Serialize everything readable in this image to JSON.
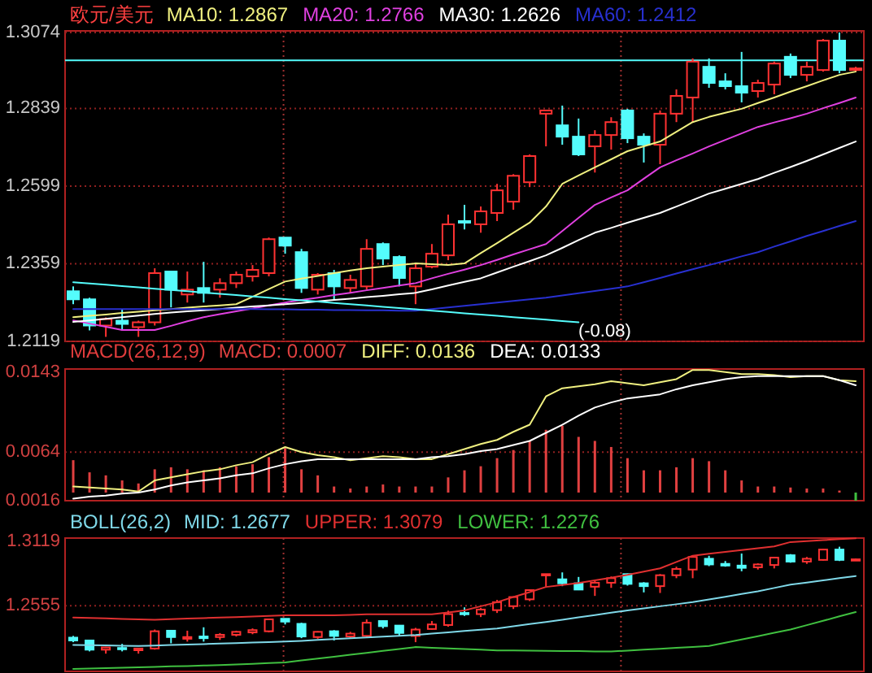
{
  "chart_data": [
    {
      "type": "candlestick",
      "title": "欧元/美元",
      "categories": [
        null,
        null,
        null,
        null,
        null,
        null,
        null,
        null,
        null,
        null,
        null,
        null,
        null,
        null,
        null,
        null,
        null,
        null,
        null,
        null,
        null,
        null,
        null,
        null,
        null,
        null,
        null,
        null,
        null,
        null,
        null,
        null,
        null,
        null,
        null,
        null,
        null,
        null,
        null,
        null,
        null,
        null,
        null,
        null,
        null,
        null,
        null,
        null,
        null
      ],
      "ohlc": [
        [
          1.2274,
          1.2289,
          1.2234,
          1.2249
        ],
        [
          1.2249,
          1.2254,
          1.2153,
          1.2168
        ],
        [
          1.2168,
          1.2193,
          1.2133,
          1.2188
        ],
        [
          1.2183,
          1.2219,
          1.2153,
          1.2173
        ],
        [
          1.2163,
          1.2183,
          1.2133,
          1.2178
        ],
        [
          1.2178,
          1.2345,
          1.2168,
          1.233
        ],
        [
          1.2335,
          1.2335,
          1.2224,
          1.2279
        ],
        [
          1.2264,
          1.2335,
          1.2239,
          1.2279
        ],
        [
          1.2284,
          1.2365,
          1.2239,
          1.2269
        ],
        [
          1.2279,
          1.2314,
          1.2254,
          1.2299
        ],
        [
          1.2299,
          1.2335,
          1.2284,
          1.2325
        ],
        [
          1.232,
          1.2355,
          1.2304,
          1.234
        ],
        [
          1.233,
          1.244,
          1.232,
          1.2435
        ],
        [
          1.244,
          1.244,
          1.239,
          1.2415
        ],
        [
          1.2395,
          1.2405,
          1.2269,
          1.2284
        ],
        [
          1.2279,
          1.233,
          1.2264,
          1.2325
        ],
        [
          1.233,
          1.234,
          1.2249,
          1.2289
        ],
        [
          1.2284,
          1.2325,
          1.2269,
          1.2309
        ],
        [
          1.2289,
          1.2435,
          1.2279,
          1.2405
        ],
        [
          1.242,
          1.2425,
          1.2355,
          1.2375
        ],
        [
          1.238,
          1.2385,
          1.2289,
          1.2315
        ],
        [
          1.2289,
          1.236,
          1.2234,
          1.2345
        ],
        [
          1.235,
          1.242,
          1.2345,
          1.239
        ],
        [
          1.2385,
          1.2511,
          1.237,
          1.2481
        ],
        [
          1.2491,
          1.2541,
          1.2465,
          1.2486
        ],
        [
          1.2481,
          1.2536,
          1.2455,
          1.2521
        ],
        [
          1.2516,
          1.2606,
          1.2491,
          1.2586
        ],
        [
          1.2551,
          1.2636,
          1.2526,
          1.2631
        ],
        [
          1.2611,
          1.2697,
          1.2596,
          1.2692
        ],
        [
          1.2823,
          1.2833,
          1.2722,
          1.2833
        ],
        [
          1.2787,
          1.2848,
          1.2727,
          1.2752
        ],
        [
          1.2752,
          1.2808,
          1.2692,
          1.2697
        ],
        [
          1.2722,
          1.2772,
          1.2641,
          1.2757
        ],
        [
          1.2757,
          1.2812,
          1.2712,
          1.2797
        ],
        [
          1.2833,
          1.2838,
          1.2732,
          1.2747
        ],
        [
          1.2752,
          1.2762,
          1.2672,
          1.2727
        ],
        [
          1.2727,
          1.2833,
          1.2667,
          1.2823
        ],
        [
          1.2823,
          1.2898,
          1.2797,
          1.2878
        ],
        [
          1.2873,
          1.2994,
          1.2797,
          1.2984
        ],
        [
          1.2968,
          1.2994,
          1.2903,
          1.2918
        ],
        [
          1.2923,
          1.2948,
          1.2898,
          1.2908
        ],
        [
          1.2908,
          1.3014,
          1.2858,
          1.2888
        ],
        [
          1.2893,
          1.2928,
          1.2873,
          1.2918
        ],
        [
          1.2913,
          1.2984,
          1.2883,
          1.2978
        ],
        [
          1.2999,
          1.3009,
          1.2933,
          1.2943
        ],
        [
          1.2943,
          1.2984,
          1.2923,
          1.2968
        ],
        [
          1.2958,
          1.3054,
          1.2953,
          1.3049
        ],
        [
          1.3049,
          1.3074,
          1.2948,
          1.2958
        ],
        [
          1.2958,
          1.2968,
          1.2953,
          1.2963
        ]
      ],
      "colors": [
        "#54fcfc",
        "#54fcfc",
        "#ff3232",
        "#54fcfc",
        "#ff3232",
        "#ff3232",
        "#54fcfc",
        "#ff3232",
        "#54fcfc",
        "#ff3232",
        "#ff3232",
        "#ff3232",
        "#ff3232",
        "#54fcfc",
        "#54fcfc",
        "#ff3232",
        "#54fcfc",
        "#ff3232",
        "#ff3232",
        "#54fcfc",
        "#54fcfc",
        "#ff3232",
        "#ff3232",
        "#ff3232",
        "#54fcfc",
        "#ff3232",
        "#ff3232",
        "#ff3232",
        "#ff3232",
        "#ff3232",
        "#54fcfc",
        "#54fcfc",
        "#ff3232",
        "#ff3232",
        "#54fcfc",
        "#54fcfc",
        "#ff3232",
        "#ff3232",
        "#ff3232",
        "#54fcfc",
        "#54fcfc",
        "#54fcfc",
        "#ff3232",
        "#ff3232",
        "#54fcfc",
        "#ff3232",
        "#ff3232",
        "#54fcfc",
        "#ff3232"
      ],
      "series": [
        {
          "name": "MA10: 1.2867",
          "type": "line",
          "color": "#f0f080",
          "values": [
            1.2194,
            1.2198,
            1.2202,
            1.2207,
            1.2211,
            1.2215,
            1.2219,
            1.2223,
            1.2227,
            1.223,
            1.2234,
            1.2257,
            1.2281,
            1.2304,
            1.2313,
            1.2321,
            1.233,
            1.2338,
            1.2345,
            1.235,
            1.2355,
            1.236,
            1.2358,
            1.2355,
            1.236,
            1.2392,
            1.2423,
            1.2455,
            1.2486,
            1.2536,
            1.2606,
            1.2632,
            1.2657,
            1.2682,
            1.2707,
            1.2722,
            1.2737,
            1.2767,
            1.2797,
            1.2813,
            1.2826,
            1.2838,
            1.2856,
            1.2873,
            1.2891,
            1.2908,
            1.2926,
            1.2943,
            1.2953
          ]
        },
        {
          "name": "MA20: 1.2766",
          "type": "line",
          "color": "#e040e0",
          "values": [
            1.2184,
            1.2174,
            1.2164,
            1.2154,
            1.2154,
            1.2154,
            1.2167,
            1.2181,
            1.2194,
            1.2203,
            1.2212,
            1.2221,
            1.223,
            1.2239,
            1.2247,
            1.2254,
            1.2262,
            1.2269,
            1.2277,
            1.2284,
            1.2292,
            1.2299,
            1.2314,
            1.2328,
            1.2341,
            1.2355,
            1.2371,
            1.2388,
            1.2404,
            1.242,
            1.246,
            1.2501,
            1.2541,
            1.2564,
            1.2586,
            1.2622,
            1.2657,
            1.2679,
            1.27,
            1.2722,
            1.2742,
            1.2762,
            1.2782,
            1.2796,
            1.2809,
            1.2823,
            1.284,
            1.2856,
            1.2873
          ]
        },
        {
          "name": "MA30: 1.2626",
          "type": "line",
          "color": "#ffffff",
          "values": [
            1.2179,
            1.2184,
            1.2189,
            1.2194,
            1.2199,
            1.2204,
            1.2208,
            1.2212,
            1.2215,
            1.2219,
            1.2223,
            1.2227,
            1.223,
            1.2234,
            1.2238,
            1.2243,
            1.2247,
            1.2251,
            1.2256,
            1.226,
            1.2265,
            1.2269,
            1.228,
            1.2292,
            1.2303,
            1.2314,
            1.2332,
            1.235,
            1.2367,
            1.2385,
            1.2408,
            1.2432,
            1.2455,
            1.247,
            1.2486,
            1.2501,
            1.2516,
            1.2536,
            1.2556,
            1.2576,
            1.2591,
            1.2606,
            1.2621,
            1.264,
            1.2658,
            1.2677,
            1.2697,
            1.2717,
            1.2737
          ]
        },
        {
          "name": "MA60: 1.2412",
          "type": "line",
          "color": "#2830d0",
          "values": [
            1.2219,
            1.2219,
            1.2219,
            1.2219,
            1.2219,
            1.2219,
            1.2219,
            1.2219,
            1.2219,
            1.2219,
            1.2219,
            1.2219,
            1.2218,
            1.2218,
            1.2217,
            1.2217,
            1.2216,
            1.2216,
            1.2215,
            1.2215,
            1.2214,
            1.2214,
            1.2219,
            1.2224,
            1.2229,
            1.2234,
            1.2239,
            1.2244,
            1.2249,
            1.2254,
            1.2261,
            1.2268,
            1.2275,
            1.2282,
            1.2289,
            1.2302,
            1.2315,
            1.2329,
            1.2342,
            1.2355,
            1.2368,
            1.2382,
            1.2395,
            1.2412,
            1.2428,
            1.2445,
            1.246,
            1.2476,
            1.2491
          ]
        },
        {
          "type": "line",
          "color": "#54fcfc",
          "values": [
            1.2302,
            1.2298,
            1.2294,
            1.229,
            1.2286,
            1.2282,
            1.2278,
            1.2274,
            1.227,
            1.2266,
            1.2262,
            1.2258,
            1.2254,
            1.225,
            1.2246,
            1.2242,
            1.2238,
            1.2234,
            1.223,
            1.2226,
            1.2222,
            1.2218,
            1.2214,
            1.221,
            1.2206,
            1.2202,
            1.2198,
            1.2194,
            1.219,
            1.2186,
            1.2182,
            1.2178,
            null,
            null,
            null,
            null,
            null,
            null,
            null,
            null,
            null,
            null,
            null,
            null,
            null,
            null,
            null,
            null,
            null
          ]
        }
      ],
      "annotations": [
        "(-0.08)"
      ],
      "ylim": [
        1.2119,
        1.3079
      ],
      "yticks": [
        1.2119,
        1.2359,
        1.2599,
        1.2839,
        1.3074
      ],
      "ref_lines": [
        {
          "axis": "y",
          "value": 1.2988,
          "color": "#54fcfc",
          "line_style": "solid"
        }
      ],
      "grid": "y",
      "tick_labels": "y"
    },
    {
      "type": "bar",
      "title": "MACD(26,12,9)",
      "categories": [
        null,
        null,
        null,
        null,
        null,
        null,
        null,
        null,
        null,
        null,
        null,
        null,
        null,
        null,
        null,
        null,
        null,
        null,
        null,
        null,
        null,
        null,
        null,
        null,
        null,
        null,
        null,
        null,
        null,
        null,
        null,
        null,
        null,
        null,
        null,
        null,
        null,
        null,
        null,
        null,
        null,
        null,
        null,
        null,
        null,
        null,
        null,
        null,
        null
      ],
      "series": [
        {
          "name": "MACD: 0.0007",
          "color": "#e04040",
          "base": [
            0.0024,
            0.0024,
            0.0024,
            0.0024,
            0.0024,
            0.0024,
            0.0024,
            0.0024,
            0.0024,
            0.0024,
            0.0024,
            0.0024,
            0.0024,
            0.0024,
            0.0024,
            0.0024,
            0.0024,
            0.0024,
            0.0024,
            0.0024,
            0.0024,
            0.0024,
            0.0024,
            0.0024,
            0.0024,
            0.0024,
            0.0024,
            0.0024,
            0.0024,
            0.0024,
            0.0024,
            0.0024,
            0.0024,
            0.0024,
            0.0024,
            0.0024,
            0.0024,
            0.0024,
            0.0024,
            0.0024,
            0.0024,
            0.0024,
            0.0024,
            0.0024,
            0.0024,
            0.0024,
            0.0024,
            0.0024,
            0.0024
          ],
          "values": [
            0.0032,
            0.002,
            0.0017,
            0.0012,
            0.0009,
            0.0023,
            0.0025,
            0.0023,
            0.0022,
            0.0025,
            0.0026,
            0.0028,
            0.0035,
            0.0044,
            0.0023,
            0.0017,
            0.0006,
            0.0004,
            0.0006,
            0.0008,
            0.0006,
            0.0006,
            0.0006,
            0.0015,
            0.0022,
            0.0026,
            0.0034,
            0.0042,
            0.0051,
            0.0062,
            0.0066,
            0.0055,
            0.0051,
            0.0045,
            0.0034,
            0.0022,
            0.0022,
            0.0025,
            0.0034,
            0.0031,
            0.0022,
            0.0012,
            0.0006,
            0.0006,
            0.0005,
            0.0004,
            0.0004,
            0.0002,
            -0.0008
          ],
          "colors": [
            "#e04040",
            "#e04040",
            "#e04040",
            "#e04040",
            "#e04040",
            "#e04040",
            "#e04040",
            "#e04040",
            "#e04040",
            "#e04040",
            "#e04040",
            "#e04040",
            "#e04040",
            "#e04040",
            "#e04040",
            "#e04040",
            "#e04040",
            "#e04040",
            "#e04040",
            "#e04040",
            "#e04040",
            "#e04040",
            "#e04040",
            "#e04040",
            "#e04040",
            "#e04040",
            "#e04040",
            "#e04040",
            "#e04040",
            "#e04040",
            "#e04040",
            "#e04040",
            "#e04040",
            "#e04040",
            "#e04040",
            "#e04040",
            "#e04040",
            "#e04040",
            "#e04040",
            "#e04040",
            "#e04040",
            "#e04040",
            "#e04040",
            "#e04040",
            "#e04040",
            "#e04040",
            "#e04040",
            "#e04040",
            "#40c040"
          ]
        },
        {
          "name": "DIFF: 0.0136",
          "type": "line",
          "color": "#f0f080",
          "values": [
            0.003,
            0.0029,
            0.0028,
            0.0027,
            0.0025,
            0.0036,
            0.0039,
            0.0042,
            0.0045,
            0.0047,
            0.0051,
            0.0054,
            0.0062,
            0.0069,
            0.0064,
            0.0061,
            0.0059,
            0.0056,
            0.0058,
            0.006,
            0.0059,
            0.0057,
            0.0057,
            0.0062,
            0.0067,
            0.0072,
            0.0076,
            0.0084,
            0.0091,
            0.0119,
            0.0127,
            0.0129,
            0.0131,
            0.0134,
            0.0132,
            0.013,
            0.0133,
            0.0136,
            0.0145,
            0.0145,
            0.0143,
            0.0141,
            0.0141,
            0.014,
            0.0138,
            0.0139,
            0.0139,
            0.0135,
            0.0134
          ]
        },
        {
          "name": "DEA: 0.0133",
          "type": "line",
          "color": "#ffffff",
          "values": [
            0.0018,
            0.002,
            0.0021,
            0.0023,
            0.0024,
            0.0027,
            0.0031,
            0.0034,
            0.0036,
            0.0038,
            0.0041,
            0.0043,
            0.0048,
            0.0052,
            0.0055,
            0.0057,
            0.0057,
            0.0057,
            0.0057,
            0.0057,
            0.0057,
            0.0057,
            0.0059,
            0.006,
            0.0062,
            0.0065,
            0.0067,
            0.0071,
            0.0075,
            0.0083,
            0.0091,
            0.01,
            0.0108,
            0.0113,
            0.0117,
            0.0119,
            0.0121,
            0.0126,
            0.013,
            0.0133,
            0.0136,
            0.0138,
            0.0139,
            0.0139,
            0.0139,
            0.0139,
            0.0139,
            0.0135,
            0.013
          ]
        }
      ],
      "ylim": [
        0.0016,
        0.0146
      ],
      "yticks": [
        0.0016,
        0.0064,
        0.0143
      ],
      "ref_lines": [
        {
          "axis": "y",
          "value": 0.0064,
          "color": "#902020",
          "line_style": "dotted"
        }
      ],
      "tick_labels": "y"
    },
    {
      "type": "line",
      "title": "BOLL(26,2)",
      "categories": [
        null,
        null,
        null,
        null,
        null,
        null,
        null,
        null,
        null,
        null,
        null,
        null,
        null,
        null,
        null,
        null,
        null,
        null,
        null,
        null,
        null,
        null,
        null,
        null,
        null,
        null,
        null,
        null,
        null,
        null,
        null,
        null,
        null,
        null,
        null,
        null,
        null,
        null,
        null,
        null,
        null,
        null,
        null,
        null,
        null,
        null,
        null,
        null,
        null
      ],
      "series": [
        {
          "type": "candlestick",
          "ohlc": [
            [
              1.2274,
              1.2289,
              1.2234,
              1.2249
            ],
            [
              1.2249,
              1.2254,
              1.2153,
              1.2168
            ],
            [
              1.2168,
              1.2193,
              1.2133,
              1.2188
            ],
            [
              1.2183,
              1.2219,
              1.2153,
              1.2173
            ],
            [
              1.2163,
              1.2183,
              1.2133,
              1.2178
            ],
            [
              1.2178,
              1.2345,
              1.2168,
              1.233
            ],
            [
              1.2335,
              1.2335,
              1.2224,
              1.2279
            ],
            [
              1.2264,
              1.2335,
              1.2239,
              1.2279
            ],
            [
              1.2284,
              1.2365,
              1.2239,
              1.2269
            ],
            [
              1.2279,
              1.2314,
              1.2254,
              1.2299
            ],
            [
              1.2299,
              1.2335,
              1.2284,
              1.2325
            ],
            [
              1.232,
              1.2355,
              1.2304,
              1.234
            ],
            [
              1.233,
              1.244,
              1.232,
              1.2435
            ],
            [
              1.244,
              1.244,
              1.239,
              1.2415
            ],
            [
              1.2395,
              1.2405,
              1.2269,
              1.2284
            ],
            [
              1.2279,
              1.233,
              1.2264,
              1.2325
            ],
            [
              1.233,
              1.234,
              1.2249,
              1.2289
            ],
            [
              1.2284,
              1.2325,
              1.2269,
              1.2309
            ],
            [
              1.2289,
              1.2435,
              1.2279,
              1.2405
            ],
            [
              1.242,
              1.2425,
              1.2355,
              1.2375
            ],
            [
              1.238,
              1.2385,
              1.2289,
              1.2315
            ],
            [
              1.2289,
              1.236,
              1.2234,
              1.2345
            ],
            [
              1.235,
              1.242,
              1.2345,
              1.239
            ],
            [
              1.2385,
              1.2511,
              1.237,
              1.2481
            ],
            [
              1.2491,
              1.2541,
              1.2465,
              1.2486
            ],
            [
              1.2481,
              1.2536,
              1.2455,
              1.2521
            ],
            [
              1.2516,
              1.2606,
              1.2491,
              1.2586
            ],
            [
              1.2551,
              1.2636,
              1.2526,
              1.2631
            ],
            [
              1.2611,
              1.2697,
              1.2596,
              1.2692
            ],
            [
              1.2823,
              1.2833,
              1.2722,
              1.2833
            ],
            [
              1.2787,
              1.2848,
              1.2727,
              1.2752
            ],
            [
              1.2752,
              1.2808,
              1.2692,
              1.2697
            ],
            [
              1.2722,
              1.2772,
              1.2641,
              1.2757
            ],
            [
              1.2757,
              1.2812,
              1.2712,
              1.2797
            ],
            [
              1.2833,
              1.2838,
              1.2732,
              1.2747
            ],
            [
              1.2752,
              1.2762,
              1.2672,
              1.2727
            ],
            [
              1.2727,
              1.2833,
              1.2667,
              1.2823
            ],
            [
              1.2823,
              1.2898,
              1.2797,
              1.2878
            ],
            [
              1.2873,
              1.2994,
              1.2797,
              1.2984
            ],
            [
              1.2968,
              1.2994,
              1.2903,
              1.2918
            ],
            [
              1.2923,
              1.2948,
              1.2898,
              1.2908
            ],
            [
              1.2908,
              1.3014,
              1.2858,
              1.2888
            ],
            [
              1.2893,
              1.2928,
              1.2873,
              1.2918
            ],
            [
              1.2913,
              1.2984,
              1.2883,
              1.2978
            ],
            [
              1.2999,
              1.3009,
              1.2933,
              1.2943
            ],
            [
              1.2943,
              1.2984,
              1.2923,
              1.2968
            ],
            [
              1.2958,
              1.3054,
              1.2953,
              1.3049
            ],
            [
              1.3049,
              1.3074,
              1.2948,
              1.2958
            ],
            [
              1.2958,
              1.2968,
              1.2953,
              1.2963
            ]
          ],
          "colors": [
            "#54fcfc",
            "#54fcfc",
            "#ff3232",
            "#54fcfc",
            "#ff3232",
            "#ff3232",
            "#54fcfc",
            "#ff3232",
            "#54fcfc",
            "#ff3232",
            "#ff3232",
            "#ff3232",
            "#ff3232",
            "#54fcfc",
            "#54fcfc",
            "#ff3232",
            "#54fcfc",
            "#ff3232",
            "#ff3232",
            "#54fcfc",
            "#54fcfc",
            "#ff3232",
            "#ff3232",
            "#ff3232",
            "#54fcfc",
            "#ff3232",
            "#ff3232",
            "#ff3232",
            "#ff3232",
            "#ff3232",
            "#54fcfc",
            "#54fcfc",
            "#ff3232",
            "#ff3232",
            "#54fcfc",
            "#54fcfc",
            "#ff3232",
            "#ff3232",
            "#ff3232",
            "#54fcfc",
            "#54fcfc",
            "#54fcfc",
            "#ff3232",
            "#ff3232",
            "#54fcfc",
            "#ff3232",
            "#ff3232",
            "#54fcfc",
            "#ff3232"
          ]
        },
        {
          "name": "MID: 1.2677",
          "color": "#7fd8e8",
          "values": [
            1.221,
            1.2208,
            1.2205,
            1.2203,
            1.22,
            1.2204,
            1.2209,
            1.2213,
            1.2217,
            1.2222,
            1.2226,
            1.223,
            1.2235,
            1.2239,
            1.2246,
            1.2254,
            1.2261,
            1.2268,
            1.2275,
            1.2283,
            1.229,
            1.2297,
            1.2309,
            1.232,
            1.2332,
            1.2343,
            1.2355,
            1.2374,
            1.2393,
            1.2412,
            1.2431,
            1.2452,
            1.2472,
            1.2493,
            1.2513,
            1.2531,
            1.255,
            1.2568,
            1.2586,
            1.261,
            1.2634,
            1.2658,
            1.2682,
            1.2711,
            1.274,
            1.2759,
            1.2778,
            1.2797,
            1.2816
          ]
        },
        {
          "name": "UPPER: 1.3079",
          "color": "#e03030",
          "values": [
            1.2451,
            1.2447,
            1.2443,
            1.2439,
            1.2435,
            1.2431,
            1.2436,
            1.2441,
            1.2446,
            1.245,
            1.2455,
            1.246,
            1.2465,
            1.247,
            1.247,
            1.247,
            1.247,
            1.2475,
            1.2479,
            1.2479,
            1.2479,
            1.2479,
            1.2479,
            1.2496,
            1.2513,
            1.255,
            1.2586,
            1.2631,
            1.2675,
            1.272,
            1.2737,
            1.2754,
            1.2778,
            1.2802,
            1.2826,
            1.2855,
            1.2884,
            1.294,
            1.2995,
            1.3012,
            1.3029,
            1.3045,
            1.3061,
            1.3077,
            1.3115,
            1.3124,
            1.3132,
            1.3141,
            1.3149
          ]
        },
        {
          "name": "LOWER: 1.2276",
          "color": "#40c040",
          "values": [
            1.1998,
            1.2002,
            1.2006,
            1.2009,
            1.2013,
            1.2017,
            1.2021,
            1.2024,
            1.2028,
            1.2032,
            1.2038,
            1.2044,
            1.205,
            1.2056,
            1.2073,
            1.209,
            1.2106,
            1.2123,
            1.214,
            1.2157,
            1.2174,
            1.2191,
            1.2185,
            1.2179,
            1.2174,
            1.2168,
            1.2162,
            1.2161,
            1.2159,
            1.2158,
            1.2156,
            1.2155,
            1.2153,
            1.2152,
            1.216,
            1.2168,
            1.2176,
            1.2184,
            1.2192,
            1.22,
            1.2229,
            1.2258,
            1.2287,
            1.2316,
            1.2345,
            1.2384,
            1.2422,
            1.2461,
            1.2499
          ]
        }
      ],
      "ylim": [
        1.1977,
        1.315
      ],
      "yticks": [
        1.2555,
        1.3119
      ],
      "ref_lines": [
        {
          "axis": "y",
          "value": 1.2555,
          "color": "#902020",
          "line_style": "dotted"
        }
      ],
      "tick_labels": "y"
    }
  ]
}
